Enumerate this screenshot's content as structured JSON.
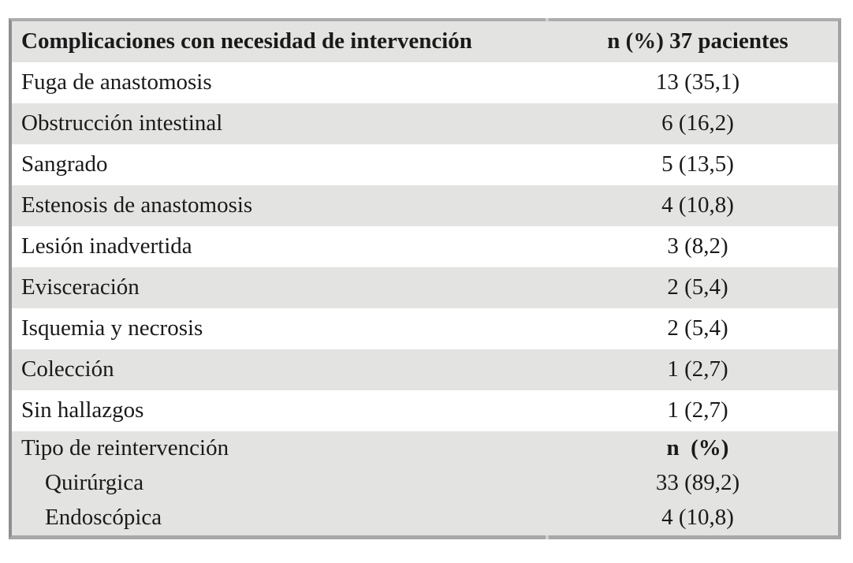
{
  "colors": {
    "background": "#ffffff",
    "stripe": "#e3e3e1",
    "text": "#1a1a1a",
    "border_top": "#adadad",
    "border_left": "#8f8f8f",
    "border_right": "#a2a2a2",
    "border_bottom": "#a8a8a8",
    "notch": "#cfcfcf"
  },
  "table": {
    "header": {
      "col1": "Complicaciones con necesidad de intervención",
      "col2": "n (%) 37 pacientes"
    },
    "rows": [
      {
        "label": "Fuga de anastomosis",
        "value": "13 (35,1)"
      },
      {
        "label": "Obstrucción intestinal",
        "value": "6 (16,2)"
      },
      {
        "label": "Sangrado",
        "value": "5 (13,5)"
      },
      {
        "label": "Estenosis de anastomosis",
        "value": "4 (10,8)"
      },
      {
        "label": "Lesión inadvertida",
        "value": "3 (8,2)"
      },
      {
        "label": "Evisceración",
        "value": "2 (5,4)"
      },
      {
        "label": "Isquemia y necrosis",
        "value": "2 (5,4)"
      },
      {
        "label": "Colección",
        "value": "1 (2,7)"
      },
      {
        "label": "Sin hallazgos",
        "value": "1 (2,7)"
      }
    ],
    "section": {
      "title": "Tipo de reintervención",
      "title_value": "n  (%)",
      "rows": [
        {
          "label": "Quirúrgica",
          "value": "33 (89,2)"
        },
        {
          "label": "Endoscópica",
          "value": "4 (10,8)"
        }
      ]
    }
  },
  "chart_data": {
    "type": "table",
    "title": "Complicaciones con necesidad de intervención",
    "columns": [
      "Complicaciones con necesidad de intervención",
      "n (%) 37 pacientes"
    ],
    "rows": [
      [
        "Fuga de anastomosis",
        "13 (35,1)"
      ],
      [
        "Obstrucción intestinal",
        "6 (16,2)"
      ],
      [
        "Sangrado",
        "5 (13,5)"
      ],
      [
        "Estenosis de anastomosis",
        "4 (10,8)"
      ],
      [
        "Lesión inadvertida",
        "3 (8,2)"
      ],
      [
        "Evisceración",
        "2 (5,4)"
      ],
      [
        "Isquemia y necrosis",
        "2 (5,4)"
      ],
      [
        "Colección",
        "1 (2,7)"
      ],
      [
        "Sin hallazgos",
        "1 (2,7)"
      ],
      [
        "Tipo de reintervención",
        "n (%)"
      ],
      [
        "Quirúrgica",
        "33 (89,2)"
      ],
      [
        "Endoscópica",
        "4 (10,8)"
      ]
    ],
    "n_total": 37
  }
}
